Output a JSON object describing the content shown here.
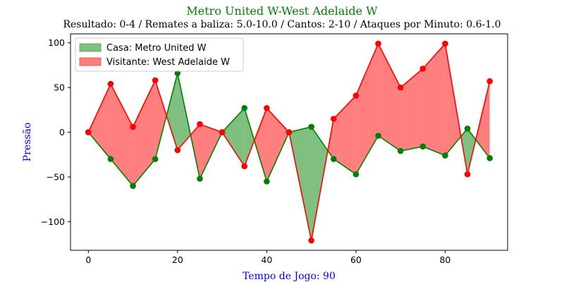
{
  "chart_data": {
    "type": "line",
    "title": "Metro United W-West Adelaide W",
    "subtitle": "Resultado: 0-4 / Remates a baliza: 5.0-10.0 / Cantos: 2-10 / Ataques por Minuto: 0.6-1.0",
    "xlabel": "Tempo de Jogo: 90",
    "ylabel": "Pressão",
    "x": [
      0,
      5,
      10,
      15,
      20,
      25,
      30,
      35,
      40,
      45,
      50,
      55,
      60,
      65,
      70,
      75,
      80,
      85,
      90
    ],
    "series": [
      {
        "name": "Casa: Metro United W",
        "values": [
          0,
          -30,
          -60,
          -30,
          66,
          -52,
          0,
          27,
          -55,
          0,
          6,
          -30,
          -47,
          -4,
          -21,
          -16,
          -26,
          4,
          -29
        ]
      },
      {
        "name": "Visitante: West Adelaide W",
        "values": [
          0,
          54,
          6,
          58,
          -20,
          9,
          0,
          -38,
          27,
          0,
          -121,
          15,
          41,
          99,
          50,
          71,
          99,
          -47,
          57
        ]
      }
    ],
    "xlim": [
      -4,
      94
    ],
    "ylim": [
      -132,
      110
    ],
    "xticks": [
      0,
      20,
      40,
      60,
      80
    ],
    "yticks": [
      -100,
      -50,
      0,
      50,
      100
    ],
    "ytick_labels": [
      "−100",
      "−50",
      "0",
      "50",
      "100"
    ],
    "grid": false,
    "legend_position": "top-left",
    "colors": {
      "home_line": "#008000",
      "home_fill": "#008000",
      "away_line": "#ff0000",
      "away_fill": "#ff0000",
      "title": "#008000",
      "axis_label": "#0000ff"
    }
  }
}
